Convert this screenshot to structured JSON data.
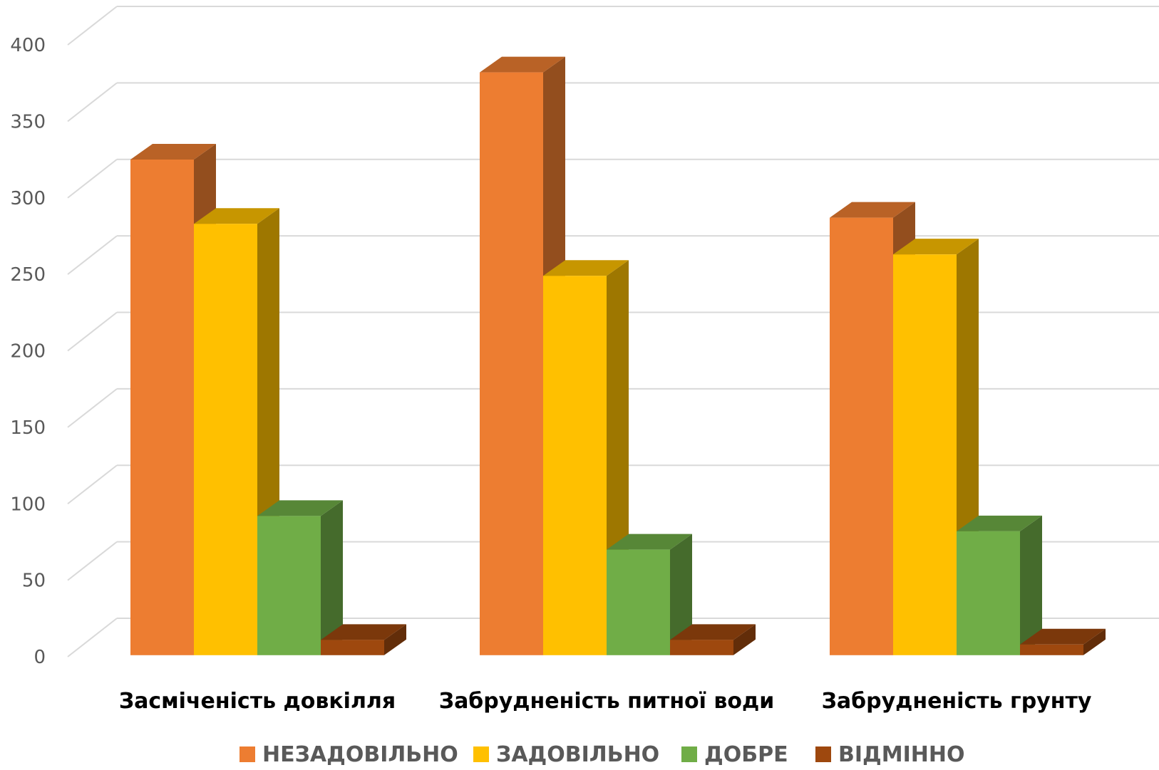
{
  "chart_data": {
    "type": "bar",
    "style": "3d-clustered",
    "title": "",
    "xlabel": "",
    "ylabel": "",
    "ylim": [
      0,
      400
    ],
    "yticks": [
      "0",
      "50",
      "100",
      "150",
      "200",
      "250",
      "300",
      "350",
      "400"
    ],
    "grid": true,
    "legend_position": "bottom",
    "categories": [
      "Засміченість довкілля",
      "Забрудненість питної води",
      "Забрудненість грунту"
    ],
    "series": [
      {
        "name": "НЕЗАДОВІЛЬНО",
        "color": "#ED7D31",
        "values": [
          324,
          381,
          286
        ]
      },
      {
        "name": "ЗАДОВІЛЬНО",
        "color": "#FFC000",
        "values": [
          282,
          248,
          262
        ]
      },
      {
        "name": "ДОБРЕ",
        "color": "#70AD47",
        "values": [
          91,
          69,
          81
        ]
      },
      {
        "name": "ВІДМІННО",
        "color": "#9E480E",
        "values": [
          10,
          10,
          7
        ]
      }
    ]
  }
}
